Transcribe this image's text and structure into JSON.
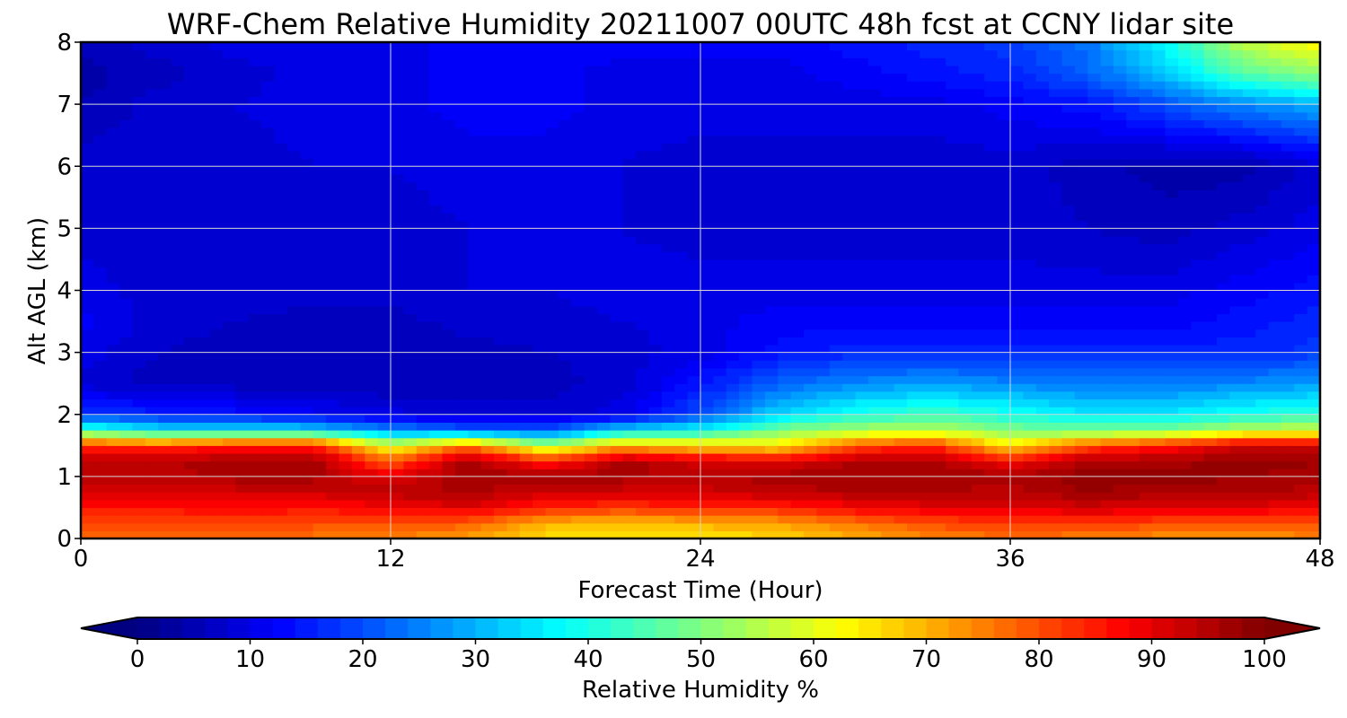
{
  "chart_data": {
    "type": "heatmap",
    "title": "WRF-Chem Relative Humidity 20211007 00UTC 48h fcst at CCNY lidar site",
    "xlabel": "Forecast Time (Hour)",
    "ylabel": "Alt AGL (km)",
    "xlim": [
      0,
      48
    ],
    "ylim": [
      0,
      8
    ],
    "xticks": [
      "0",
      "12",
      "24",
      "36",
      "48"
    ],
    "yticks": [
      "0",
      "1",
      "2",
      "3",
      "4",
      "5",
      "6",
      "7",
      "8"
    ],
    "grid": true,
    "colormap": "jet",
    "colorbar": {
      "label": "Relative Humidity %",
      "range": [
        0,
        100
      ],
      "extend": "both",
      "orientation": "horizontal",
      "ticks": [
        "0",
        "10",
        "20",
        "30",
        "40",
        "50",
        "60",
        "70",
        "80",
        "90",
        "100"
      ]
    },
    "x": [
      0,
      3,
      6,
      9,
      12,
      15,
      18,
      21,
      24,
      27,
      30,
      33,
      36,
      39,
      42,
      45,
      48
    ],
    "y": [
      0,
      0.25,
      0.5,
      0.75,
      1.0,
      1.25,
      1.5,
      1.75,
      2.0,
      2.5,
      3.0,
      3.5,
      4,
      5,
      6,
      7,
      7.5,
      8
    ],
    "values": [
      [
        78,
        78,
        76,
        76,
        74,
        72,
        66,
        64,
        64,
        66,
        70,
        74,
        76,
        75,
        73,
        72,
        74
      ],
      [
        82,
        80,
        81,
        80,
        80,
        78,
        70,
        68,
        70,
        72,
        76,
        80,
        82,
        82,
        80,
        80,
        80
      ],
      [
        86,
        86,
        88,
        86,
        88,
        90,
        84,
        82,
        84,
        84,
        88,
        90,
        90,
        92,
        90,
        90,
        88
      ],
      [
        92,
        92,
        92,
        92,
        94,
        96,
        92,
        92,
        92,
        94,
        95,
        95,
        94,
        97,
        96,
        96,
        94
      ],
      [
        94,
        94,
        96,
        96,
        90,
        97,
        96,
        96,
        94,
        96,
        97,
        97,
        96,
        98,
        98,
        97,
        96
      ],
      [
        94,
        94,
        97,
        97,
        78,
        97,
        84,
        96,
        92,
        90,
        95,
        96,
        88,
        96,
        96,
        98,
        97
      ],
      [
        84,
        82,
        86,
        86,
        60,
        76,
        56,
        70,
        66,
        64,
        80,
        84,
        64,
        80,
        86,
        93,
        94
      ],
      [
        44,
        36,
        36,
        34,
        26,
        22,
        20,
        34,
        38,
        50,
        54,
        56,
        50,
        48,
        50,
        56,
        58
      ],
      [
        18,
        16,
        14,
        12,
        10,
        8,
        8,
        10,
        20,
        34,
        40,
        44,
        40,
        36,
        36,
        40,
        42
      ],
      [
        8,
        6,
        6,
        5,
        5,
        6,
        6,
        8,
        14,
        22,
        26,
        28,
        26,
        24,
        24,
        26,
        28
      ],
      [
        10,
        7,
        6,
        5,
        5,
        6,
        7,
        8,
        10,
        14,
        16,
        16,
        16,
        16,
        16,
        16,
        18
      ],
      [
        12,
        8,
        7,
        6,
        6,
        8,
        8,
        9,
        10,
        12,
        12,
        12,
        12,
        12,
        12,
        14,
        16
      ],
      [
        10,
        8,
        8,
        8,
        8,
        9,
        9,
        10,
        10,
        10,
        10,
        10,
        10,
        10,
        10,
        12,
        14
      ],
      [
        8,
        8,
        8,
        8,
        8,
        9,
        9,
        9,
        8,
        8,
        8,
        8,
        8,
        7,
        6,
        8,
        10
      ],
      [
        8,
        8,
        8,
        9,
        9,
        10,
        10,
        9,
        8,
        8,
        8,
        8,
        8,
        6,
        4,
        4,
        8
      ],
      [
        5,
        8,
        9,
        10,
        10,
        12,
        12,
        10,
        10,
        10,
        10,
        10,
        12,
        14,
        20,
        26,
        30
      ],
      [
        4,
        6,
        8,
        10,
        10,
        12,
        12,
        10,
        10,
        10,
        12,
        14,
        16,
        22,
        32,
        46,
        52
      ],
      [
        6,
        8,
        10,
        10,
        10,
        12,
        12,
        12,
        12,
        12,
        14,
        16,
        18,
        24,
        38,
        56,
        64
      ]
    ]
  }
}
